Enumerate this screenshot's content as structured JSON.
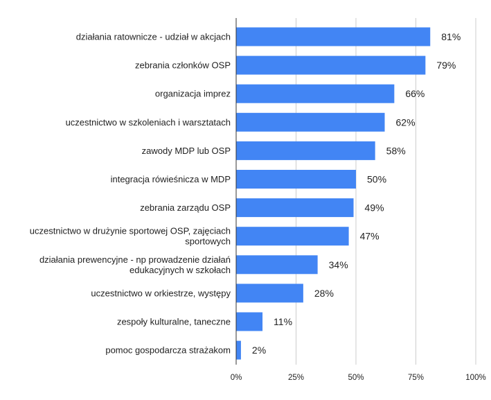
{
  "chart_data": {
    "type": "bar",
    "orientation": "horizontal",
    "title": "",
    "xlabel": "",
    "ylabel": "",
    "xlim": [
      0,
      100
    ],
    "grid": true,
    "bar_color": "#4285f4",
    "categories": [
      [
        "działania ratownicze - udział w akcjach"
      ],
      [
        "zebrania członków OSP"
      ],
      [
        "organizacja imprez"
      ],
      [
        "uczestnictwo w szkoleniach i warsztatach"
      ],
      [
        "zawody MDP lub OSP"
      ],
      [
        "integracja rówieśnicza w MDP"
      ],
      [
        "zebrania zarządu OSP"
      ],
      [
        "uczestnictwo w drużynie sportowej OSP, zajęciach",
        "sportowych"
      ],
      [
        "działania prewencyjne - np prowadzenie działań",
        "edukacyjnych w szkołach"
      ],
      [
        "uczestnictwo w orkiestrze, występy"
      ],
      [
        "zespoły kulturalne, taneczne"
      ],
      [
        "pomoc gospodarcza strażakom"
      ]
    ],
    "values": [
      81,
      79,
      66,
      62,
      58,
      50,
      49,
      47,
      34,
      28,
      11,
      2
    ],
    "value_labels": [
      "81%",
      "79%",
      "66%",
      "62%",
      "58%",
      "50%",
      "49%",
      "47%",
      "34%",
      "28%",
      "11%",
      "2%"
    ],
    "x_ticks": [
      0,
      25,
      50,
      75,
      100
    ],
    "x_tick_labels": [
      "0%",
      "25%",
      "50%",
      "75%",
      "100%"
    ]
  }
}
